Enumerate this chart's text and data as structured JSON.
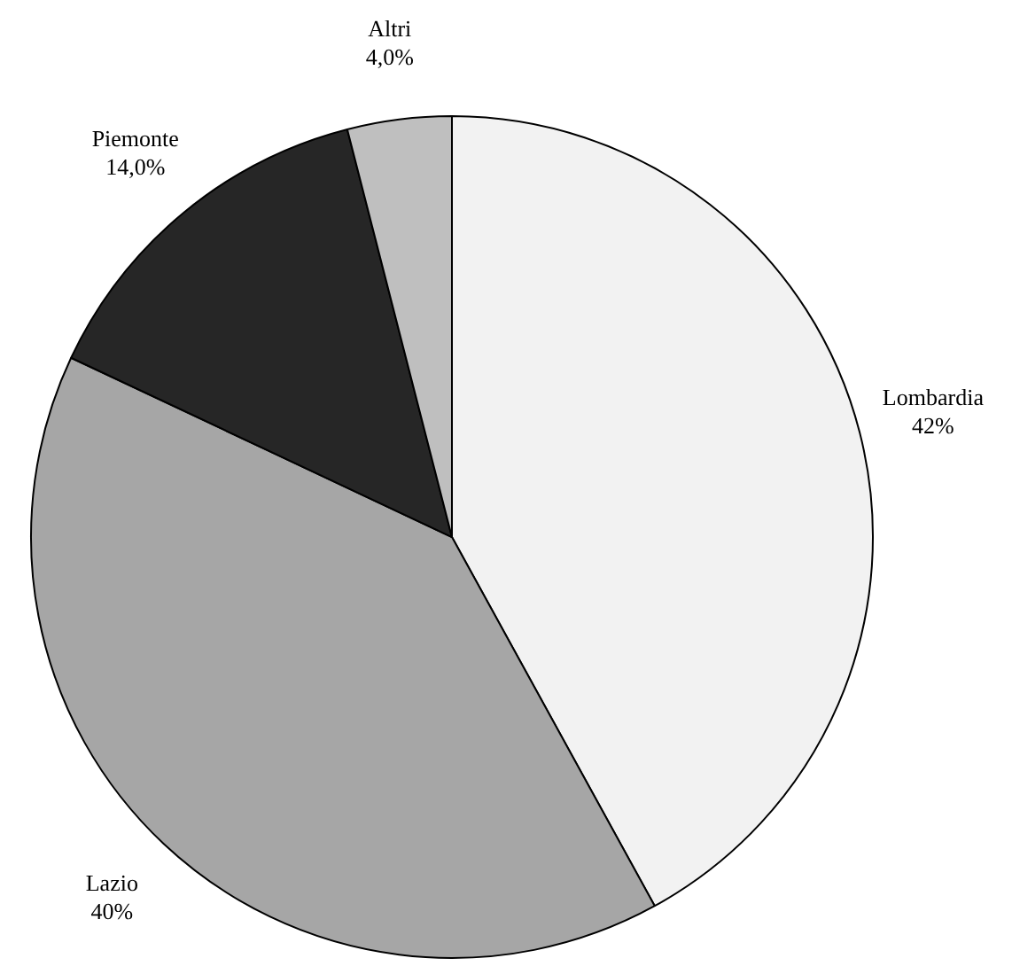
{
  "chart_data": {
    "type": "pie",
    "categories": [
      "Lombardia",
      "Lazio",
      "Piemonte",
      "Altri"
    ],
    "values": [
      42,
      40,
      14,
      4
    ],
    "colors": [
      "#f2f2f2",
      "#a6a6a6",
      "#262626",
      "#bfbfbf"
    ],
    "value_labels": [
      "42%",
      "40%",
      "14,0%",
      "4,0%"
    ],
    "legend": false
  }
}
